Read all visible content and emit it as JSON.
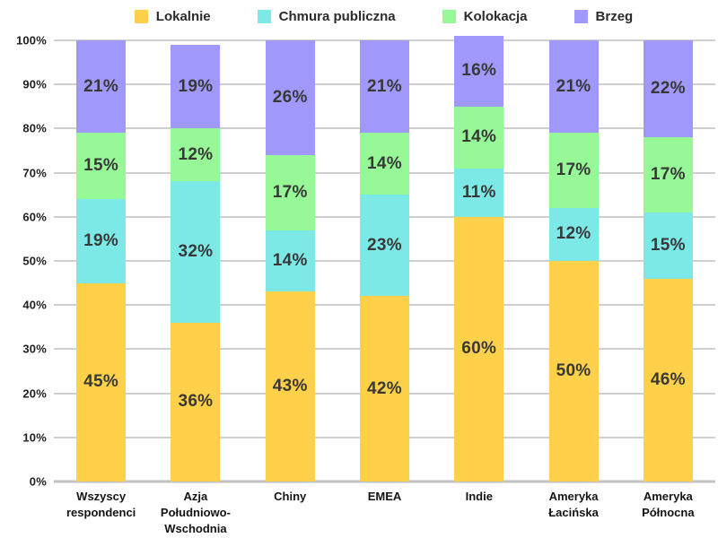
{
  "chart_data": {
    "type": "bar",
    "stacked": true,
    "percent_stacked": true,
    "title": "",
    "xlabel": "",
    "ylabel": "",
    "ylim": [
      0,
      100
    ],
    "grid": true,
    "legend_position": "top",
    "value_suffix": "%",
    "y_ticks": [
      "0%",
      "10%",
      "20%",
      "30%",
      "40%",
      "50%",
      "60%",
      "70%",
      "80%",
      "90%",
      "100%"
    ],
    "categories": [
      "Wszyscy\nrespondenci",
      "Azja\nPołudniowo-\nWschodnia",
      "Chiny",
      "EMEA",
      "Indie",
      "Ameryka\nŁacińska",
      "Ameryka\nPółnocna"
    ],
    "series": [
      {
        "name": "Lokalnie",
        "color": "#FFD14A",
        "values": [
          45,
          36,
          43,
          42,
          60,
          50,
          46
        ],
        "labels": [
          "45%",
          "36%",
          "43%",
          "42%",
          "60%",
          "50%",
          "46%"
        ]
      },
      {
        "name": "Chmura publiczna",
        "color": "#7DE9E6",
        "values": [
          19,
          32,
          14,
          23,
          11,
          12,
          15
        ],
        "labels": [
          "19%",
          "32%",
          "14%",
          "23%",
          "11%",
          "12%",
          "15%"
        ]
      },
      {
        "name": "Kolokacja",
        "color": "#96F896",
        "values": [
          15,
          12,
          17,
          14,
          14,
          17,
          17
        ],
        "labels": [
          "15%",
          "12%",
          "17%",
          "14%",
          "14%",
          "17%",
          "17%"
        ]
      },
      {
        "name": "Brzeg",
        "color": "#A099FB",
        "values": [
          21,
          19,
          26,
          21,
          16,
          21,
          22
        ],
        "labels": [
          "21%",
          "19%",
          "26%",
          "21%",
          "16%",
          "21%",
          "22%"
        ]
      }
    ],
    "colors": {
      "grid": "#cfcfcf",
      "baseline": "#c2c2c2",
      "label_text": "#383838",
      "axis_text": "#1f1f1f"
    }
  }
}
